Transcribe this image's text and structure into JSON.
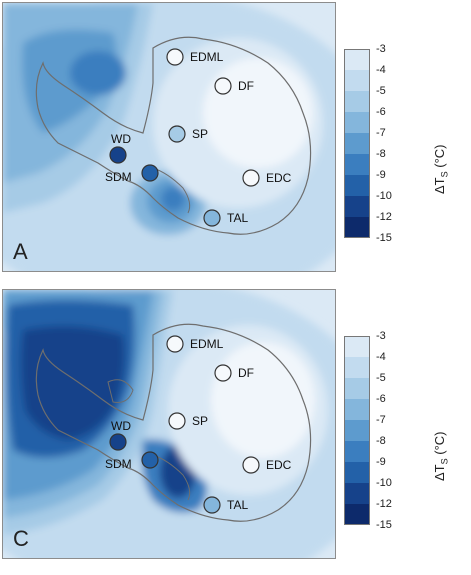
{
  "panels": [
    {
      "letter": "A"
    },
    {
      "letter": "C"
    }
  ],
  "sites": [
    "EDML",
    "DF",
    "SP",
    "WD",
    "SDM",
    "EDC",
    "TAL"
  ],
  "colorbar": {
    "title_main": "ΔT",
    "title_sub": "S",
    "title_unit": "(°C)",
    "ticks": [
      "-3",
      "-4",
      "-5",
      "-6",
      "-7",
      "-8",
      "-9",
      "-10",
      "-12",
      "-15"
    ],
    "colors": [
      "#f1f6fb",
      "#dbe9f5",
      "#c2dbef",
      "#a6cbe6",
      "#84b6dc",
      "#5d9bce",
      "#3b7ebf",
      "#2361a8",
      "#16428a",
      "#0d2a6b"
    ]
  },
  "colors": {
    "coastline": "#6e6e6e",
    "background": "#dbe9f5"
  }
}
